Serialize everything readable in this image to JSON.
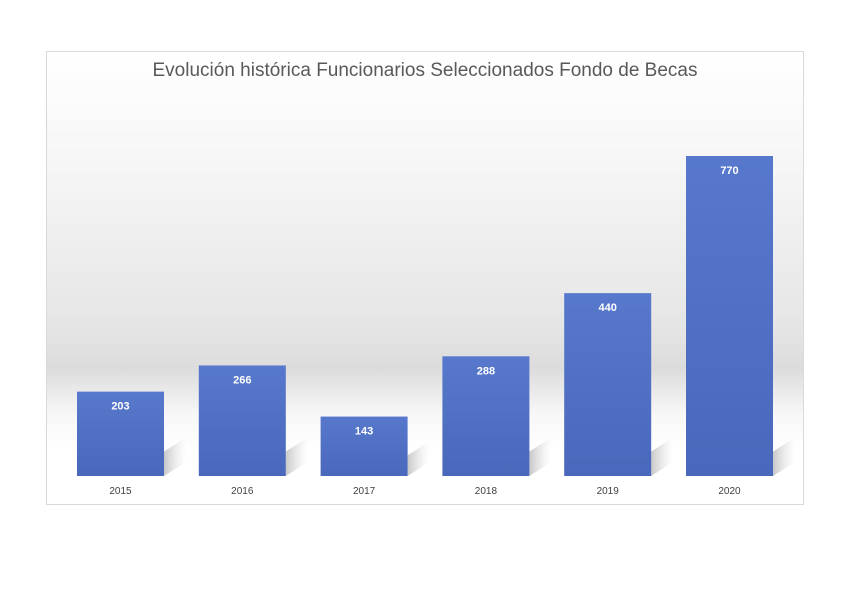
{
  "chart_data": {
    "type": "bar",
    "title": "Evolución histórica Funcionarios Seleccionados Fondo de Becas",
    "categories": [
      "2015",
      "2016",
      "2017",
      "2018",
      "2019",
      "2020"
    ],
    "values": [
      203,
      266,
      143,
      288,
      440,
      770
    ],
    "xlabel": "",
    "ylabel": "",
    "ylim": [
      0,
      770
    ],
    "grid": false,
    "legend": "none",
    "colors": {
      "bar": "#4f6fc4",
      "bar_light": "#5b7bd0",
      "data_label": "#ffffff",
      "tick_label": "#404040"
    }
  }
}
